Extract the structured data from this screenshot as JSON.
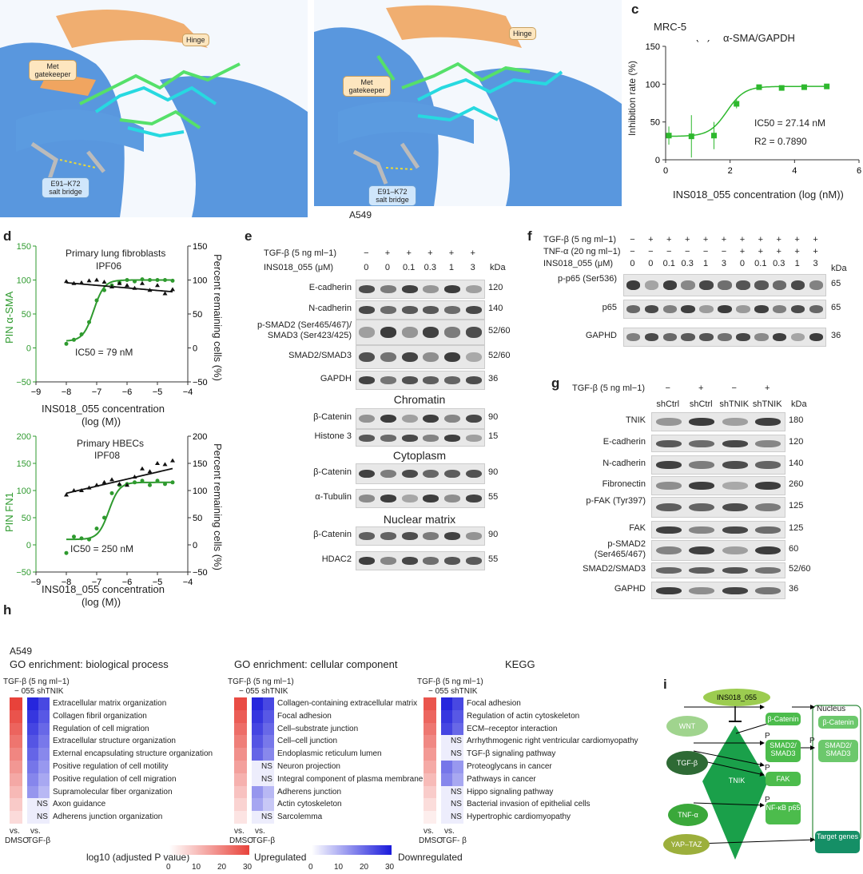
{
  "panel_letters": {
    "a": "a",
    "b": "b",
    "c": "c",
    "d": "d",
    "e": "e",
    "f": "f",
    "g": "g",
    "h": "h",
    "i": "i"
  },
  "structure": {
    "a": {
      "met": "Met gatekeeper",
      "hinge": "Hinge",
      "salt": "E91–K72 salt bridge"
    },
    "b": {
      "met": "Met gatekeeper",
      "hinge": "Hinge",
      "salt": "E91–K72 salt bridge",
      "cell": "A549"
    }
  },
  "panel_c": {
    "cell": "MRC-5",
    "title": "α-SMA/GAPDH",
    "ylabel": "Inhibition rate (%)",
    "xlabel": "INS018_055 concentration (log (nM))",
    "ic50": "IC50 = 27.14 nM",
    "r2": "R2 = 0.7890",
    "chart_data": {
      "type": "scatter",
      "x": [
        0.1,
        0.8,
        1.5,
        2.2,
        2.9,
        3.6,
        4.3,
        5.0
      ],
      "y": [
        32,
        31,
        32,
        74,
        96,
        95,
        96,
        97
      ],
      "xlim": [
        0,
        6
      ],
      "ylim": [
        0,
        150
      ],
      "xticks": [
        "0",
        "2",
        "4",
        "6"
      ],
      "yticks": [
        "0",
        "50",
        "100",
        "150"
      ]
    }
  },
  "panel_d": {
    "top": {
      "title1": "Primary lung fibroblasts",
      "title2": "IPF06",
      "ic50": "IC50 = 79 nM",
      "ylabel_left": "PIN α-SMA",
      "ylabel_right": "Percent remaining cells (%)",
      "xlabel1": "INS018_055 concentration",
      "xlabel2": "(log (M))",
      "yticks_left": [
        "150",
        "100",
        "50",
        "0",
        "−50"
      ],
      "yticks_right": [
        "150",
        "100",
        "50",
        "0",
        "−50"
      ],
      "xticks": [
        "−9",
        "−8",
        "−7",
        "−6",
        "−5",
        "−4"
      ]
    },
    "bottom": {
      "title1": "Primary HBECs",
      "title2": "IPF08",
      "ic50": "IC50 = 250 nM",
      "ylabel_left": "PIN FN1",
      "ylabel_right": "Percent remaining cells (%)",
      "xlabel1": "INS018_055 concentration",
      "xlabel2": "(log (M))",
      "yticks_left": [
        "200",
        "150",
        "100",
        "50",
        "0",
        "−50"
      ],
      "yticks_right": [
        "200",
        "150",
        "100",
        "50",
        "0",
        "−50"
      ],
      "xticks": [
        "−9",
        "−8",
        "−7",
        "−6",
        "−5",
        "−4"
      ]
    }
  },
  "panel_e": {
    "tgf": "TGF-β (5 ng ml−1)",
    "ins": "INS018_055 (μM)",
    "tgf_vals": [
      "−",
      "+",
      "+",
      "+",
      "+",
      "+"
    ],
    "ins_vals": [
      "0",
      "0",
      "0.1",
      "0.3",
      "1",
      "3"
    ],
    "kda": "kDa",
    "rows": [
      {
        "label": "E-cadherin",
        "kda": "120"
      },
      {
        "label": "N-cadherin",
        "kda": "140"
      },
      {
        "label": "p-SMAD2 (Ser465/467)/ SMAD3 (Ser423/425)",
        "kda": "52/60"
      },
      {
        "label": "SMAD2/SMAD3",
        "kda": "52/60"
      },
      {
        "label": "GAPDH",
        "kda": "36"
      },
      {
        "label": "β-Catenin",
        "kda": "90"
      },
      {
        "label": "Histone 3",
        "kda": "15"
      },
      {
        "label": "β-Catenin",
        "kda": "90"
      },
      {
        "label": "α-Tubulin",
        "kda": "55"
      },
      {
        "label": "β-Catenin",
        "kda": "90"
      },
      {
        "label": "HDAC2",
        "kda": "55"
      }
    ],
    "sections": [
      "Chromatin",
      "Cytoplasm",
      "Nuclear matrix"
    ]
  },
  "panel_f": {
    "tgf": "TGF-β (5 ng ml−1)",
    "tnf": "TNF-α (20 ng ml−1)",
    "ins": "INS018_055 (μM)",
    "tgf_vals": [
      "−",
      "+",
      "+",
      "+",
      "+",
      "+",
      "+",
      "+",
      "+",
      "+",
      "+"
    ],
    "tnf_vals": [
      "−",
      "−",
      "−",
      "−",
      "−",
      "−",
      "+",
      "+",
      "+",
      "+",
      "+"
    ],
    "ins_vals": [
      "0",
      "0",
      "0.1",
      "0.3",
      "1",
      "3",
      "0",
      "0.1",
      "0.3",
      "1",
      "3"
    ],
    "kda": "kDa",
    "rows": [
      {
        "label": "p-p65 (Ser536)",
        "kda": "65"
      },
      {
        "label": "p65",
        "kda": "65"
      },
      {
        "label": "GAPHD",
        "kda": "36"
      }
    ]
  },
  "panel_g": {
    "tgf": "TGF-β (5 ng ml−1)",
    "tgf_vals": [
      "−",
      "+",
      "−",
      "+"
    ],
    "lanes": [
      "shCtrl",
      "shCtrl",
      "shTNIK",
      "shTNIK"
    ],
    "kda": "kDa",
    "rows": [
      {
        "label": "TNIK",
        "kda": "180"
      },
      {
        "label": "E-cadherin",
        "kda": "120"
      },
      {
        "label": "N-cadherin",
        "kda": "140"
      },
      {
        "label": "Fibronectin",
        "kda": "260"
      },
      {
        "label": "p-FAK (Tyr397)",
        "kda": "125"
      },
      {
        "label": "FAK",
        "kda": "125"
      },
      {
        "label": "p-SMAD2 (Ser465/467)",
        "kda": "60"
      },
      {
        "label": "SMAD2/SMAD3",
        "kda": "52/60"
      },
      {
        "label": "GAPHD",
        "kda": "36"
      }
    ]
  },
  "panel_h": {
    "cell": "A549",
    "bp": {
      "title": "GO enrichment: biological process",
      "tgf": "TGF-β (5 ng ml−1)",
      "cols": "−   055 shTNIK",
      "terms": [
        "Extracellular matrix organization",
        "Collagen fibril organization",
        "Regulation of cell migration",
        "Extracellular structure organization",
        "External encapsulating structure organization",
        "Positive regulation of cell motility",
        "Positive regulation of cell migration",
        "Supramolecular fiber organization",
        "Axon guidance",
        "Adherens junction organization"
      ],
      "ns": [
        8,
        9
      ]
    },
    "cc": {
      "title": "GO enrichment: cellular component",
      "tgf": "TGF-β (5 ng ml−1)",
      "cols": "−   055 shTNIK",
      "terms": [
        "Collagen-containing extracellular matrix",
        "Focal adhesion",
        "Cell–substrate junction",
        "Cell–cell junction",
        "Endoplasmic reticulum lumen",
        "Neuron projection",
        "Integral component of plasma membrane",
        "Adherens junction",
        "Actin cytoskeleton",
        "Sarcolemma"
      ],
      "ns": [
        5,
        6,
        9
      ]
    },
    "kegg": {
      "title": "KEGG",
      "tgf": "TGF-β (5 ng ml−1)",
      "cols": "−   055 shTNIK",
      "terms": [
        "Focal adhesion",
        "Regulation of actin cytoskeleton",
        "ECM–receptor interaction",
        "Arrhythmogenic right ventricular cardiomyopathy",
        "TGF-β signaling pathway",
        "Proteoglycans in cancer",
        "Pathways in cancer",
        "Hippo signaling pathway",
        "Bacterial invasion of epithelial cells",
        "Hypertrophic cardiomyopathy"
      ],
      "ns": [
        3,
        4,
        7,
        8,
        9
      ]
    },
    "ns_label": "NS",
    "vs": "vs.",
    "dmso": "DMSO",
    "tgfb": "TGF-β",
    "tgfb2": "TGF- β",
    "legend_title": "log10 (adjusted P value)",
    "up": "Upregulated",
    "down": "Downregulated",
    "ticks": [
      "0",
      "10",
      "20",
      "30"
    ],
    "colors": {
      "up": "#e8423a",
      "down": "#1a1adb"
    }
  },
  "panel_i": {
    "nodes": {
      "ins": "INS018_055",
      "wnt": "WNT",
      "tgf": "TGF-β",
      "tnf": "TNF-α",
      "yap": "YAP–TAZ",
      "tnik": "TNIK",
      "bcat": "β-Catenin",
      "smad": "SMAD2/ SMAD3",
      "fak": "FAK",
      "nfkb": "NF-κB p65",
      "nucleus": "Nucleus",
      "nbcat": "β-Catenin",
      "nsmad": "SMAD2/ SMAD3",
      "target": "Target genes",
      "p": "P"
    }
  }
}
